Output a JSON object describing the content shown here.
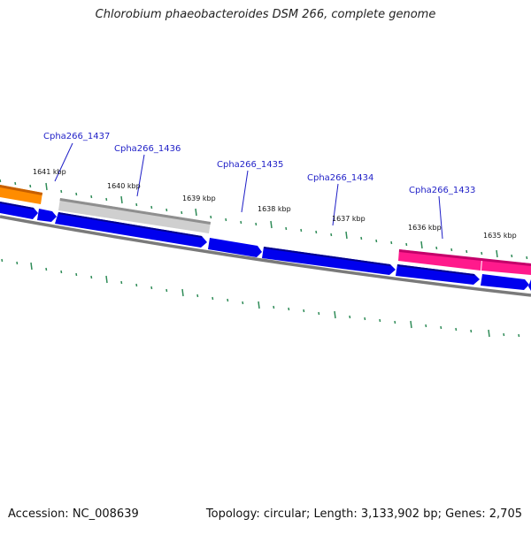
{
  "title": "Chlorobium phaeobacteroides DSM 266, complete genome",
  "footer": {
    "accession": "Accession: NC_008639",
    "summary": "Topology: circular; Length: 3,133,902 bp; Genes: 2,705"
  },
  "colors": {
    "forward_gene": "#0000ee",
    "selected_gene": "#ff1493",
    "grey_gene": "#c0c0c0",
    "orange_gene": "#ff8c00",
    "backbone": "#808080",
    "ticks": "#2e8b57",
    "label": "#1f1fc7"
  },
  "gene_labels": [
    {
      "id": "Cpha266_1437"
    },
    {
      "id": "Cpha266_1436"
    },
    {
      "id": "Cpha266_1435"
    },
    {
      "id": "Cpha266_1434"
    },
    {
      "id": "Cpha266_1433"
    }
  ],
  "ruler_labels": [
    "1641 kbp",
    "1640 kbp",
    "1639 kbp",
    "1638 kbp",
    "1637 kbp",
    "1636 kbp",
    "1635 kbp"
  ]
}
